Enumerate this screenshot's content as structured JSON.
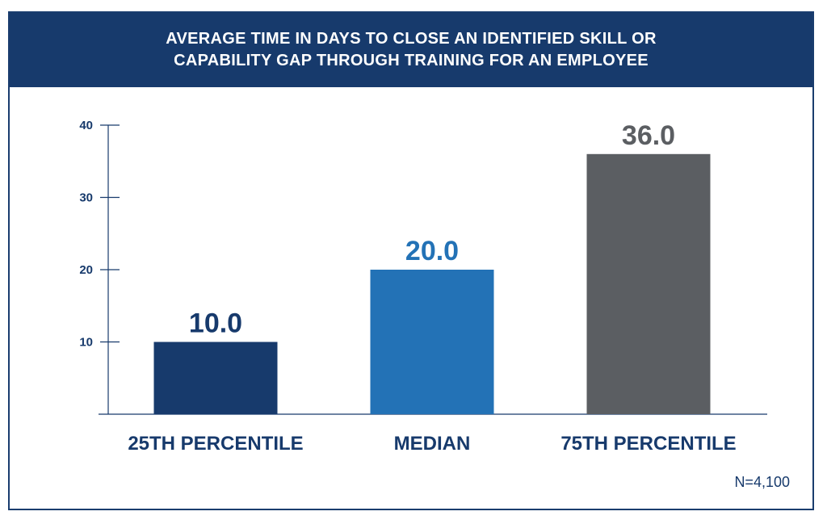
{
  "header": {
    "title_line1": "AVERAGE TIME IN DAYS TO CLOSE AN IDENTIFIED SKILL OR",
    "title_line2": "CAPABILITY GAP THROUGH TRAINING FOR AN EMPLOYEE"
  },
  "footnote": "N=4,100",
  "colors": {
    "header_bg": "#173a6c",
    "axis": "#173a6c",
    "bar_25th": "#173a6c",
    "bar_median": "#2372b6",
    "bar_75th": "#5b5e62",
    "label_25th": "#173a6c",
    "label_median": "#2372b6",
    "label_75th": "#5b5e62"
  },
  "chart_data": {
    "type": "bar",
    "title": "AVERAGE TIME IN DAYS TO CLOSE AN IDENTIFIED SKILL OR CAPABILITY GAP THROUGH TRAINING FOR AN EMPLOYEE",
    "categories": [
      "25TH PERCENTILE",
      "MEDIAN",
      "75TH PERCENTILE"
    ],
    "values": [
      10.0,
      20.0,
      36.0
    ],
    "value_labels": [
      "10.0",
      "20.0",
      "36.0"
    ],
    "yticks": [
      10,
      20,
      30,
      40
    ],
    "ylim": [
      0,
      40
    ],
    "xlabel": "",
    "ylabel": "",
    "grid": false,
    "legend": "none"
  }
}
